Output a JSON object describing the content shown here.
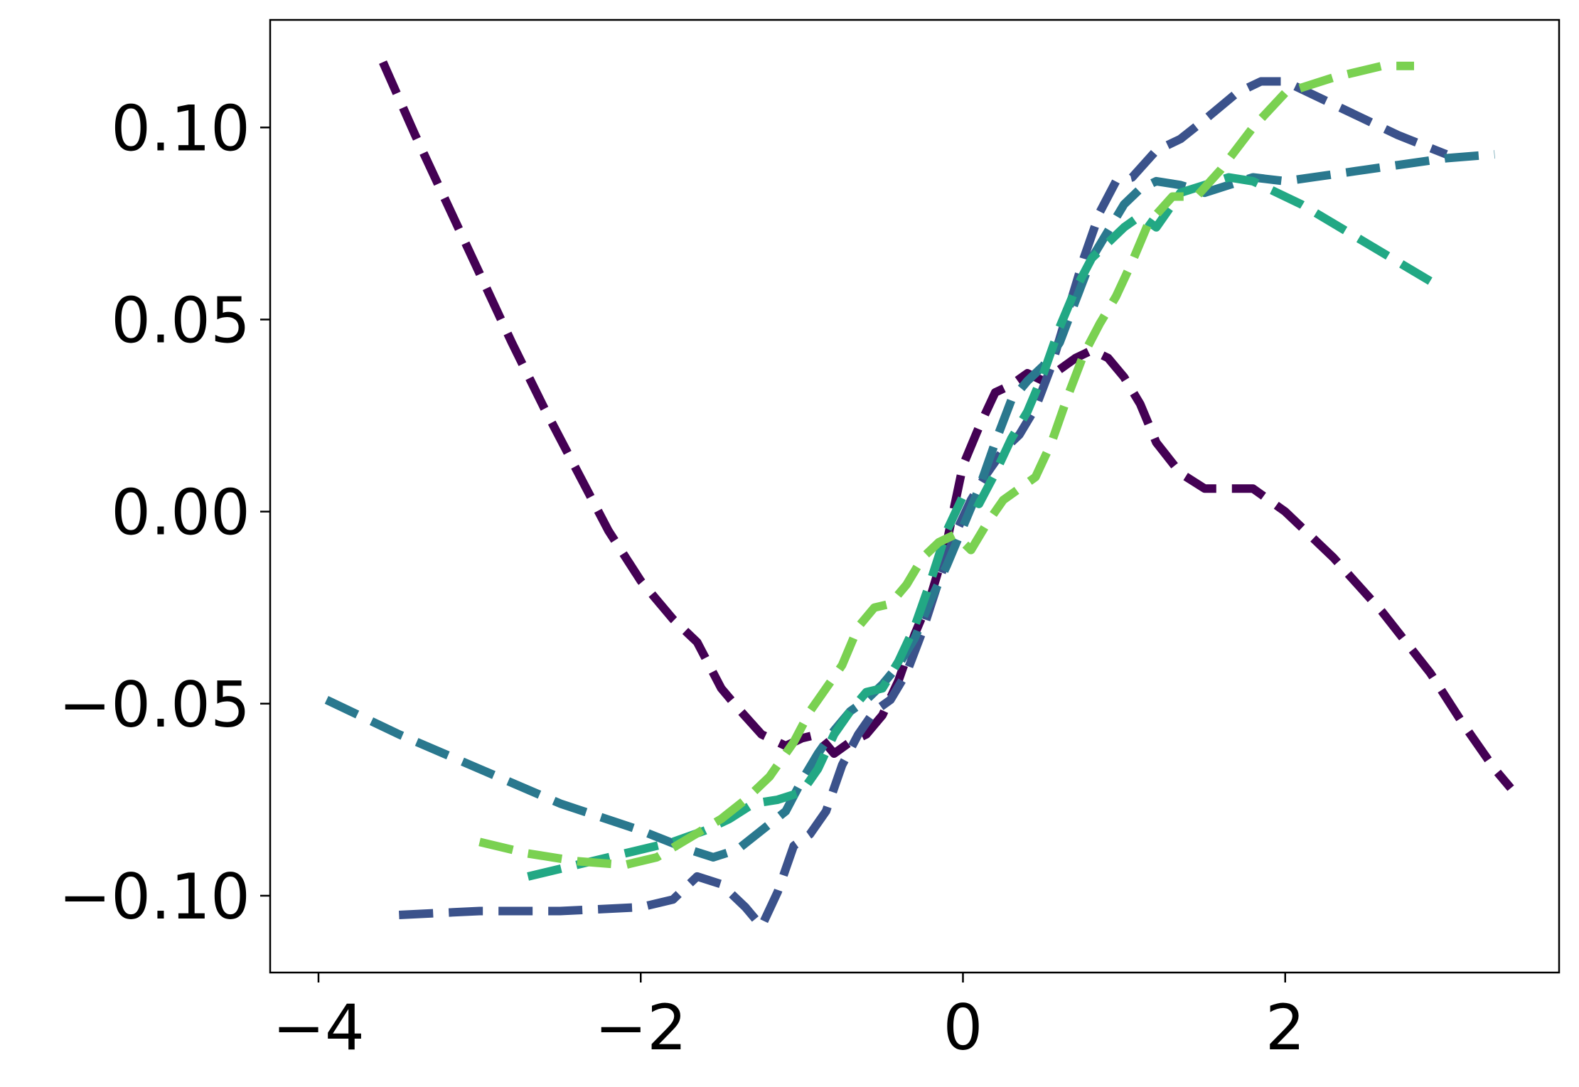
{
  "chart_data": {
    "type": "line",
    "title": "",
    "xlabel": "",
    "ylabel": "",
    "xlim": [
      -4.3,
      3.7
    ],
    "ylim": [
      -0.12,
      0.128
    ],
    "xticks": [
      -4,
      -2,
      0,
      2
    ],
    "xtick_labels": [
      "−4",
      "−2",
      "0",
      "2"
    ],
    "yticks": [
      -0.1,
      -0.05,
      0.0,
      0.05,
      0.1
    ],
    "ytick_labels": [
      "−0.10",
      "−0.05",
      "0.00",
      "0.05",
      "0.10"
    ],
    "grid": false,
    "series": [
      {
        "color": "#440154",
        "points": [
          [
            -3.6,
            0.117
          ],
          [
            -3.4,
            0.098
          ],
          [
            -3.2,
            0.08
          ],
          [
            -3.0,
            0.062
          ],
          [
            -2.8,
            0.044
          ],
          [
            -2.6,
            0.027
          ],
          [
            -2.4,
            0.011
          ],
          [
            -2.2,
            -0.005
          ],
          [
            -2.0,
            -0.018
          ],
          [
            -1.8,
            -0.028
          ],
          [
            -1.65,
            -0.034
          ],
          [
            -1.5,
            -0.046
          ],
          [
            -1.4,
            -0.051
          ],
          [
            -1.25,
            -0.058
          ],
          [
            -1.1,
            -0.061
          ],
          [
            -1.0,
            -0.059
          ],
          [
            -0.9,
            -0.058
          ],
          [
            -0.8,
            -0.063
          ],
          [
            -0.7,
            -0.06
          ],
          [
            -0.6,
            -0.058
          ],
          [
            -0.5,
            -0.053
          ],
          [
            -0.4,
            -0.044
          ],
          [
            -0.3,
            -0.032
          ],
          [
            -0.2,
            -0.022
          ],
          [
            -0.1,
            -0.008
          ],
          [
            0.0,
            0.012
          ],
          [
            0.1,
            0.022
          ],
          [
            0.2,
            0.031
          ],
          [
            0.3,
            0.033
          ],
          [
            0.4,
            0.036
          ],
          [
            0.5,
            0.034
          ],
          [
            0.6,
            0.037
          ],
          [
            0.7,
            0.04
          ],
          [
            0.8,
            0.042
          ],
          [
            0.9,
            0.04
          ],
          [
            1.0,
            0.035
          ],
          [
            1.1,
            0.028
          ],
          [
            1.2,
            0.018
          ],
          [
            1.35,
            0.01
          ],
          [
            1.5,
            0.006
          ],
          [
            1.8,
            0.006
          ],
          [
            2.0,
            0.0
          ],
          [
            2.3,
            -0.012
          ],
          [
            2.6,
            -0.026
          ],
          [
            2.9,
            -0.042
          ],
          [
            3.1,
            -0.055
          ],
          [
            3.3,
            -0.067
          ],
          [
            3.4,
            -0.072
          ]
        ]
      },
      {
        "color": "#3b528b",
        "points": [
          [
            -3.5,
            -0.105
          ],
          [
            -3.0,
            -0.104
          ],
          [
            -2.5,
            -0.104
          ],
          [
            -2.0,
            -0.103
          ],
          [
            -1.8,
            -0.101
          ],
          [
            -1.65,
            -0.095
          ],
          [
            -1.5,
            -0.097
          ],
          [
            -1.35,
            -0.103
          ],
          [
            -1.25,
            -0.108
          ],
          [
            -1.15,
            -0.099
          ],
          [
            -1.05,
            -0.087
          ],
          [
            -0.95,
            -0.084
          ],
          [
            -0.85,
            -0.078
          ],
          [
            -0.75,
            -0.066
          ],
          [
            -0.65,
            -0.058
          ],
          [
            -0.55,
            -0.052
          ],
          [
            -0.45,
            -0.049
          ],
          [
            -0.35,
            -0.042
          ],
          [
            -0.25,
            -0.031
          ],
          [
            -0.15,
            -0.018
          ],
          [
            -0.05,
            -0.006
          ],
          [
            0.05,
            0.003
          ],
          [
            0.15,
            0.01
          ],
          [
            0.25,
            0.016
          ],
          [
            0.35,
            0.02
          ],
          [
            0.45,
            0.027
          ],
          [
            0.55,
            0.038
          ],
          [
            0.65,
            0.052
          ],
          [
            0.75,
            0.066
          ],
          [
            0.85,
            0.078
          ],
          [
            0.95,
            0.086
          ],
          [
            1.05,
            0.087
          ],
          [
            1.2,
            0.094
          ],
          [
            1.35,
            0.097
          ],
          [
            1.5,
            0.102
          ],
          [
            1.7,
            0.109
          ],
          [
            1.85,
            0.112
          ],
          [
            2.0,
            0.112
          ],
          [
            2.3,
            0.106
          ],
          [
            2.7,
            0.098
          ],
          [
            3.0,
            0.093
          ]
        ]
      },
      {
        "color": "#2a788e",
        "points": [
          [
            -3.95,
            -0.049
          ],
          [
            -3.5,
            -0.058
          ],
          [
            -3.0,
            -0.067
          ],
          [
            -2.5,
            -0.076
          ],
          [
            -2.0,
            -0.083
          ],
          [
            -1.7,
            -0.088
          ],
          [
            -1.55,
            -0.09
          ],
          [
            -1.4,
            -0.088
          ],
          [
            -1.25,
            -0.083
          ],
          [
            -1.1,
            -0.078
          ],
          [
            -1.0,
            -0.07
          ],
          [
            -0.9,
            -0.063
          ],
          [
            -0.8,
            -0.057
          ],
          [
            -0.7,
            -0.052
          ],
          [
            -0.6,
            -0.049
          ],
          [
            -0.5,
            -0.045
          ],
          [
            -0.4,
            -0.04
          ],
          [
            -0.3,
            -0.033
          ],
          [
            -0.2,
            -0.023
          ],
          [
            -0.1,
            -0.014
          ],
          [
            0.0,
            -0.004
          ],
          [
            0.1,
            0.006
          ],
          [
            0.2,
            0.018
          ],
          [
            0.3,
            0.029
          ],
          [
            0.4,
            0.034
          ],
          [
            0.5,
            0.038
          ],
          [
            0.6,
            0.044
          ],
          [
            0.7,
            0.055
          ],
          [
            0.8,
            0.066
          ],
          [
            0.9,
            0.073
          ],
          [
            1.0,
            0.08
          ],
          [
            1.1,
            0.084
          ],
          [
            1.2,
            0.086
          ],
          [
            1.35,
            0.085
          ],
          [
            1.5,
            0.083
          ],
          [
            1.65,
            0.085
          ],
          [
            1.8,
            0.087
          ],
          [
            2.0,
            0.086
          ],
          [
            2.5,
            0.089
          ],
          [
            3.0,
            0.092
          ],
          [
            3.3,
            0.093
          ]
        ]
      },
      {
        "color": "#22a884",
        "points": [
          [
            -2.7,
            -0.095
          ],
          [
            -2.4,
            -0.092
          ],
          [
            -2.1,
            -0.089
          ],
          [
            -1.8,
            -0.086
          ],
          [
            -1.6,
            -0.083
          ],
          [
            -1.45,
            -0.08
          ],
          [
            -1.3,
            -0.076
          ],
          [
            -1.15,
            -0.075
          ],
          [
            -1.0,
            -0.073
          ],
          [
            -0.9,
            -0.067
          ],
          [
            -0.8,
            -0.058
          ],
          [
            -0.7,
            -0.052
          ],
          [
            -0.6,
            -0.047
          ],
          [
            -0.5,
            -0.046
          ],
          [
            -0.4,
            -0.039
          ],
          [
            -0.3,
            -0.03
          ],
          [
            -0.2,
            -0.018
          ],
          [
            -0.1,
            -0.005
          ],
          [
            0.0,
            0.004
          ],
          [
            0.1,
            0.002
          ],
          [
            0.2,
            0.01
          ],
          [
            0.3,
            0.019
          ],
          [
            0.4,
            0.026
          ],
          [
            0.5,
            0.036
          ],
          [
            0.6,
            0.048
          ],
          [
            0.7,
            0.058
          ],
          [
            0.8,
            0.066
          ],
          [
            0.9,
            0.07
          ],
          [
            1.0,
            0.074
          ],
          [
            1.1,
            0.077
          ],
          [
            1.2,
            0.074
          ],
          [
            1.35,
            0.083
          ],
          [
            1.5,
            0.085
          ],
          [
            1.65,
            0.087
          ],
          [
            1.8,
            0.086
          ],
          [
            2.1,
            0.08
          ],
          [
            2.5,
            0.07
          ],
          [
            2.9,
            0.06
          ]
        ]
      },
      {
        "color": "#7ad151",
        "points": [
          [
            -3.0,
            -0.086
          ],
          [
            -2.7,
            -0.089
          ],
          [
            -2.4,
            -0.091
          ],
          [
            -2.1,
            -0.092
          ],
          [
            -1.9,
            -0.09
          ],
          [
            -1.7,
            -0.085
          ],
          [
            -1.5,
            -0.08
          ],
          [
            -1.35,
            -0.075
          ],
          [
            -1.2,
            -0.069
          ],
          [
            -1.05,
            -0.06
          ],
          [
            -0.95,
            -0.052
          ],
          [
            -0.85,
            -0.046
          ],
          [
            -0.75,
            -0.04
          ],
          [
            -0.65,
            -0.03
          ],
          [
            -0.55,
            -0.025
          ],
          [
            -0.45,
            -0.024
          ],
          [
            -0.35,
            -0.019
          ],
          [
            -0.25,
            -0.012
          ],
          [
            -0.15,
            -0.008
          ],
          [
            -0.05,
            -0.006
          ],
          [
            0.05,
            -0.01
          ],
          [
            0.15,
            -0.003
          ],
          [
            0.25,
            0.003
          ],
          [
            0.35,
            0.006
          ],
          [
            0.45,
            0.009
          ],
          [
            0.55,
            0.018
          ],
          [
            0.65,
            0.03
          ],
          [
            0.75,
            0.041
          ],
          [
            0.85,
            0.049
          ],
          [
            0.95,
            0.056
          ],
          [
            1.05,
            0.065
          ],
          [
            1.15,
            0.075
          ],
          [
            1.3,
            0.082
          ],
          [
            1.45,
            0.082
          ],
          [
            1.6,
            0.089
          ],
          [
            1.8,
            0.1
          ],
          [
            2.0,
            0.109
          ],
          [
            2.3,
            0.113
          ],
          [
            2.6,
            0.116
          ],
          [
            2.8,
            0.116
          ]
        ]
      }
    ]
  }
}
